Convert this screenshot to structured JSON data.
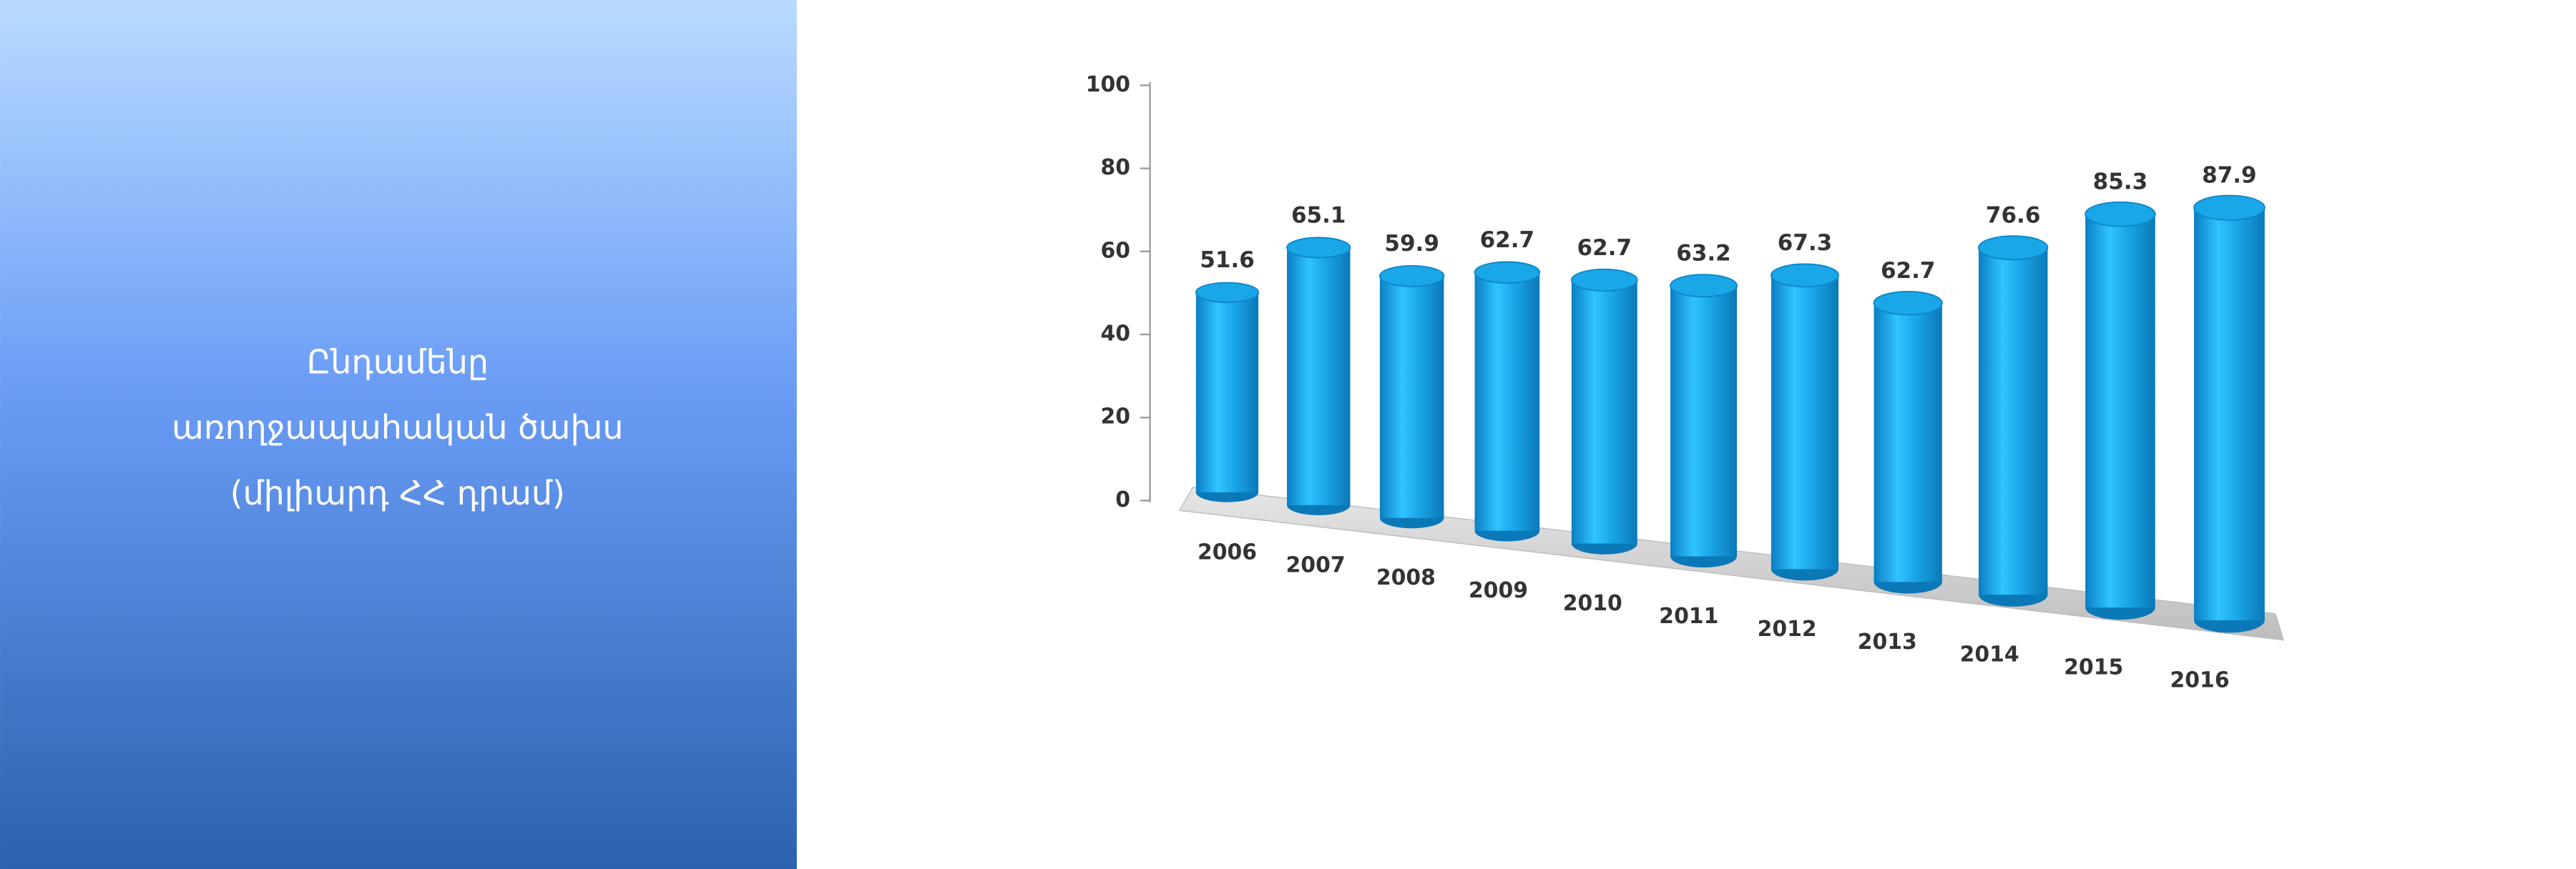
{
  "panel": {
    "lines": [
      "Ընդամենը",
      "առողջապահական ծախս",
      "(միլիարդ ՀՀ դրամ)"
    ]
  },
  "chart_data": {
    "type": "bar",
    "categories": [
      "2006",
      "2007",
      "2008",
      "2009",
      "2010",
      "2011",
      "2012",
      "2013",
      "2014",
      "2015",
      "2016"
    ],
    "values": [
      51.6,
      65.1,
      59.9,
      62.7,
      62.7,
      63.2,
      67.3,
      62.7,
      76.6,
      85.3,
      87.9
    ],
    "color": "#1aa7e8",
    "ylim": [
      0,
      100
    ],
    "yticks": [
      0,
      20,
      40,
      60,
      80,
      100
    ]
  }
}
